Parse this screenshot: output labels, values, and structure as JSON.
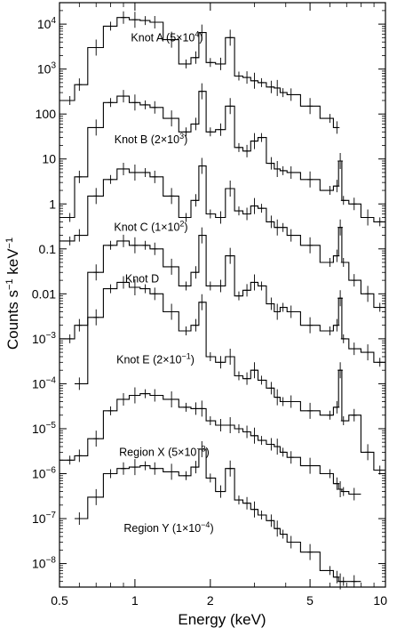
{
  "chart_data": {
    "type": "line",
    "xlabel": "Energy (keV)",
    "ylabel": "Counts s",
    "ylabel_sup": "−1",
    "ylabel_unit": " keV",
    "ylabel_unit_sup": "−1",
    "xscale": "log",
    "yscale": "log",
    "xlim": [
      0.5,
      10
    ],
    "ylim": [
      3e-09,
      30000
    ],
    "x_ticks": [
      {
        "value": 0.5,
        "label": "0.5"
      },
      {
        "value": 1,
        "label": "1"
      },
      {
        "value": 2,
        "label": "2"
      },
      {
        "value": 5,
        "label": "5"
      },
      {
        "value": 10,
        "label": "10"
      }
    ],
    "y_ticks": [
      {
        "value": 10000,
        "base": "10",
        "exp": "4"
      },
      {
        "value": 1000,
        "base": "10",
        "exp": "3"
      },
      {
        "value": 100,
        "base": "100",
        "exp": ""
      },
      {
        "value": 10,
        "base": "10",
        "exp": ""
      },
      {
        "value": 1,
        "base": "1",
        "exp": ""
      },
      {
        "value": 0.1,
        "base": "0.1",
        "exp": ""
      },
      {
        "value": 0.01,
        "base": "0.01",
        "exp": ""
      },
      {
        "value": 0.001,
        "base": "10",
        "exp": "−3"
      },
      {
        "value": 0.0001,
        "base": "10",
        "exp": "−4"
      },
      {
        "value": 1e-05,
        "base": "10",
        "exp": "−5"
      },
      {
        "value": 1e-06,
        "base": "10",
        "exp": "−6"
      },
      {
        "value": 1e-07,
        "base": "10",
        "exp": "−7"
      },
      {
        "value": 1e-08,
        "base": "10",
        "exp": "−8"
      }
    ],
    "x": [
      0.55,
      0.6,
      0.7,
      0.8,
      0.9,
      1.0,
      1.1,
      1.2,
      1.4,
      1.6,
      1.75,
      1.85,
      2.0,
      2.2,
      2.4,
      2.6,
      2.8,
      3.0,
      3.2,
      3.5,
      3.7,
      3.9,
      4.2,
      5.0,
      6.0,
      6.4,
      6.6,
      6.8,
      7.5,
      8.5,
      9.5
    ],
    "series": [
      {
        "name": "Knot A",
        "scale": "(5×10",
        "scale_exp": "4",
        "scale_end": ")",
        "values": [
          200,
          450,
          3000,
          9000,
          14000,
          12500,
          12000,
          11000,
          4500,
          1300,
          1800,
          6500,
          1400,
          1300,
          5000,
          700,
          650,
          550,
          500,
          400,
          380,
          300,
          270,
          150,
          80,
          50,
          null,
          null,
          null,
          null,
          null
        ]
      },
      {
        "name": "Knot B",
        "scale": "(2×10",
        "scale_exp": "3",
        "scale_end": ")",
        "values": [
          0.5,
          4,
          50,
          180,
          250,
          180,
          160,
          140,
          80,
          40,
          60,
          320,
          40,
          45,
          150,
          18,
          15,
          25,
          30,
          8,
          6,
          5.5,
          5,
          3.5,
          2,
          2.5,
          9,
          1.2,
          1,
          0.5,
          0.4
        ]
      },
      {
        "name": "Knot C",
        "scale": "(1×10",
        "scale_exp": "2",
        "scale_end": ")",
        "values": [
          0.15,
          0.2,
          1.5,
          3.5,
          6,
          5,
          5,
          4,
          1.5,
          0.5,
          1.2,
          7,
          0.6,
          0.5,
          2.2,
          0.7,
          0.6,
          0.9,
          0.8,
          0.4,
          0.3,
          0.3,
          0.2,
          0.12,
          0.05,
          0.07,
          0.3,
          0.05,
          0.02,
          0.01,
          0.005
        ]
      },
      {
        "name": "Knot D",
        "scale": "",
        "scale_exp": "",
        "scale_end": "",
        "values": [
          0.001,
          0.002,
          0.03,
          0.12,
          0.15,
          0.12,
          0.12,
          0.1,
          0.04,
          0.015,
          0.03,
          0.2,
          0.015,
          0.015,
          0.07,
          0.009,
          0.012,
          0.018,
          0.015,
          0.006,
          0.004,
          0.005,
          0.004,
          0.002,
          0.0015,
          0.002,
          0.008,
          0.001,
          0.0006,
          0.0005,
          0.0003
        ]
      },
      {
        "name": "Knot E",
        "scale": "(2×10",
        "scale_exp": "−1",
        "scale_end": ")",
        "values": [
          null,
          0.0001,
          0.003,
          0.013,
          0.018,
          0.014,
          0.013,
          0.01,
          0.004,
          0.0015,
          0.002,
          0.0065,
          0.0004,
          0.0003,
          0.0004,
          0.00015,
          0.00013,
          0.0002,
          0.00012,
          8e-05,
          5e-05,
          4e-05,
          4e-05,
          2.5e-05,
          2e-05,
          3e-05,
          0.0002,
          1.5e-05,
          2e-05,
          3e-06,
          1.2e-06
        ]
      },
      {
        "name": "Region X",
        "scale": "(5×10",
        "scale_exp": "−3",
        "scale_end": ")",
        "values": [
          2e-06,
          2.5e-06,
          6e-06,
          2.5e-05,
          4.5e-05,
          5.5e-05,
          6e-05,
          5.5e-05,
          4.5e-05,
          3e-05,
          2.8e-05,
          2.8e-05,
          1.5e-05,
          1.2e-05,
          1.2e-05,
          1e-05,
          8.5e-06,
          7e-06,
          5.5e-06,
          4.5e-06,
          4e-06,
          3e-06,
          2.3e-06,
          1.5e-06,
          1e-06,
          6e-07,
          4.5e-07,
          4e-07,
          3.5e-07,
          null,
          null
        ]
      },
      {
        "name": "Region Y",
        "scale": "(1×10",
        "scale_exp": "−4",
        "scale_end": ")",
        "values": [
          null,
          1e-07,
          3e-07,
          1e-06,
          1.3e-06,
          1.4e-06,
          1.5e-06,
          1.3e-06,
          1.1e-06,
          9e-07,
          1.4e-06,
          3.5e-06,
          8e-07,
          4e-07,
          1.3e-06,
          2.6e-07,
          2.2e-07,
          1.6e-07,
          1.2e-07,
          9e-08,
          6e-08,
          4.5e-08,
          3e-08,
          1.8e-08,
          7e-09,
          5e-09,
          4e-09,
          4e-09,
          4e-09,
          null,
          null
        ]
      }
    ],
    "grid": false,
    "legend": "none"
  }
}
